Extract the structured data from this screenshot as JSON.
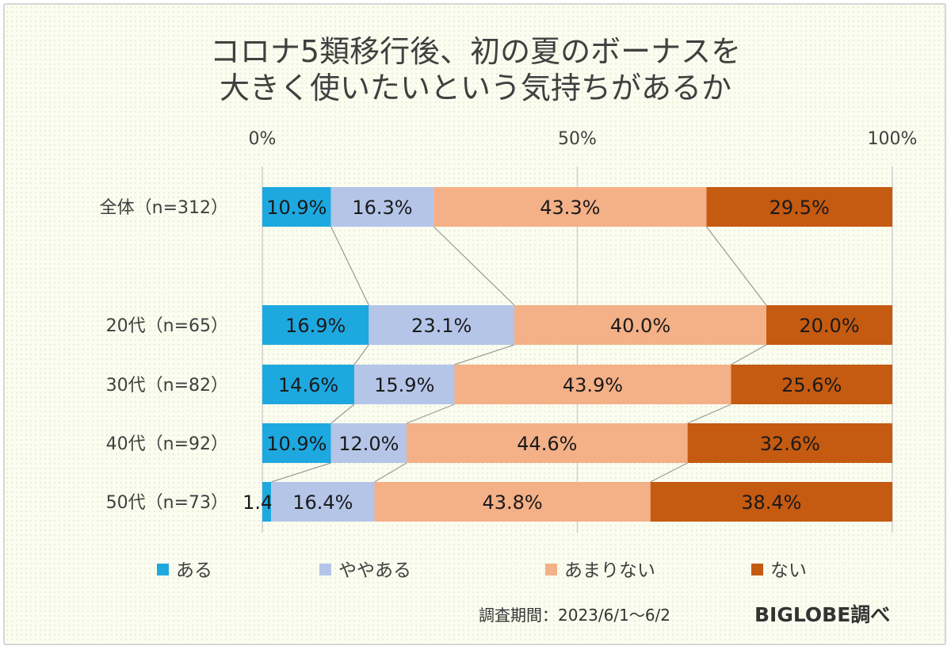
{
  "title_line1": "コロナ5類移行後、初の夏のボーナスを",
  "title_line2": "大きく使いたいという気持ちがあるか",
  "footer": {
    "period": "調査期間：2023/6/1～6/2",
    "source": "BIGLOBE調べ"
  },
  "chart_data": {
    "type": "bar",
    "orientation": "horizontal-stacked-100",
    "categories": [
      "全体（n=312）",
      "20代（n=65）",
      "30代（n=82）",
      "40代（n=92）",
      "50代（n=73）"
    ],
    "x_tick_labels": [
      "0%",
      "50%",
      "100%"
    ],
    "xlim": [
      0,
      100
    ],
    "grid": true,
    "legend_position": "bottom",
    "series": [
      {
        "name": "ある",
        "color": "#1ea8e0",
        "values": [
          10.9,
          16.9,
          14.6,
          10.9,
          1.4
        ]
      },
      {
        "name": "ややある",
        "color": "#b4c5e8",
        "values": [
          16.3,
          23.1,
          15.9,
          12.0,
          16.4
        ]
      },
      {
        "name": "あまりない",
        "color": "#f4b087",
        "values": [
          43.3,
          40.0,
          43.9,
          44.6,
          43.8
        ]
      },
      {
        "name": "ない",
        "color": "#c55a11",
        "values": [
          29.5,
          20.0,
          25.6,
          32.6,
          38.4
        ]
      }
    ],
    "data_labels": [
      [
        "10.9%",
        "16.9%",
        "14.6%",
        "10.9%",
        "1.4%"
      ],
      [
        "16.3%",
        "23.1%",
        "15.9%",
        "12.0%",
        "16.4%"
      ],
      [
        "43.3%",
        "40.0%",
        "43.9%",
        "44.6%",
        "43.8%"
      ],
      [
        "29.5%",
        "20.0%",
        "25.6%",
        "32.6%",
        "38.4%"
      ]
    ]
  }
}
